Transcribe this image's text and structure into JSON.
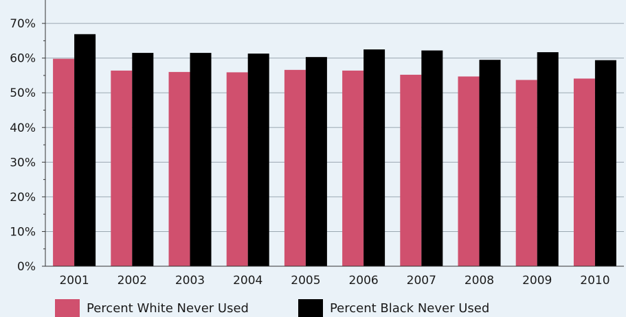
{
  "chart_data": {
    "type": "bar",
    "categories": [
      "2001",
      "2002",
      "2003",
      "2004",
      "2005",
      "2006",
      "2007",
      "2008",
      "2009",
      "2010"
    ],
    "series": [
      {
        "name": "Percent White Never Used",
        "color": "#d0506e",
        "values": [
          59.8,
          56.4,
          56.0,
          55.9,
          56.6,
          56.4,
          55.2,
          54.7,
          53.7,
          54.1
        ]
      },
      {
        "name": "Percent Black Never Used",
        "color": "#000000",
        "values": [
          66.9,
          61.5,
          61.5,
          61.3,
          60.3,
          62.5,
          62.2,
          59.5,
          61.7,
          59.4
        ]
      }
    ],
    "y_ticks": [
      "0%",
      "10%",
      "20%",
      "30%",
      "40%",
      "50%",
      "60%",
      "70%"
    ],
    "ylim": [
      0,
      72
    ],
    "grid": true,
    "legend_position": "bottom-left",
    "title": "",
    "xlabel": "",
    "ylabel": ""
  }
}
